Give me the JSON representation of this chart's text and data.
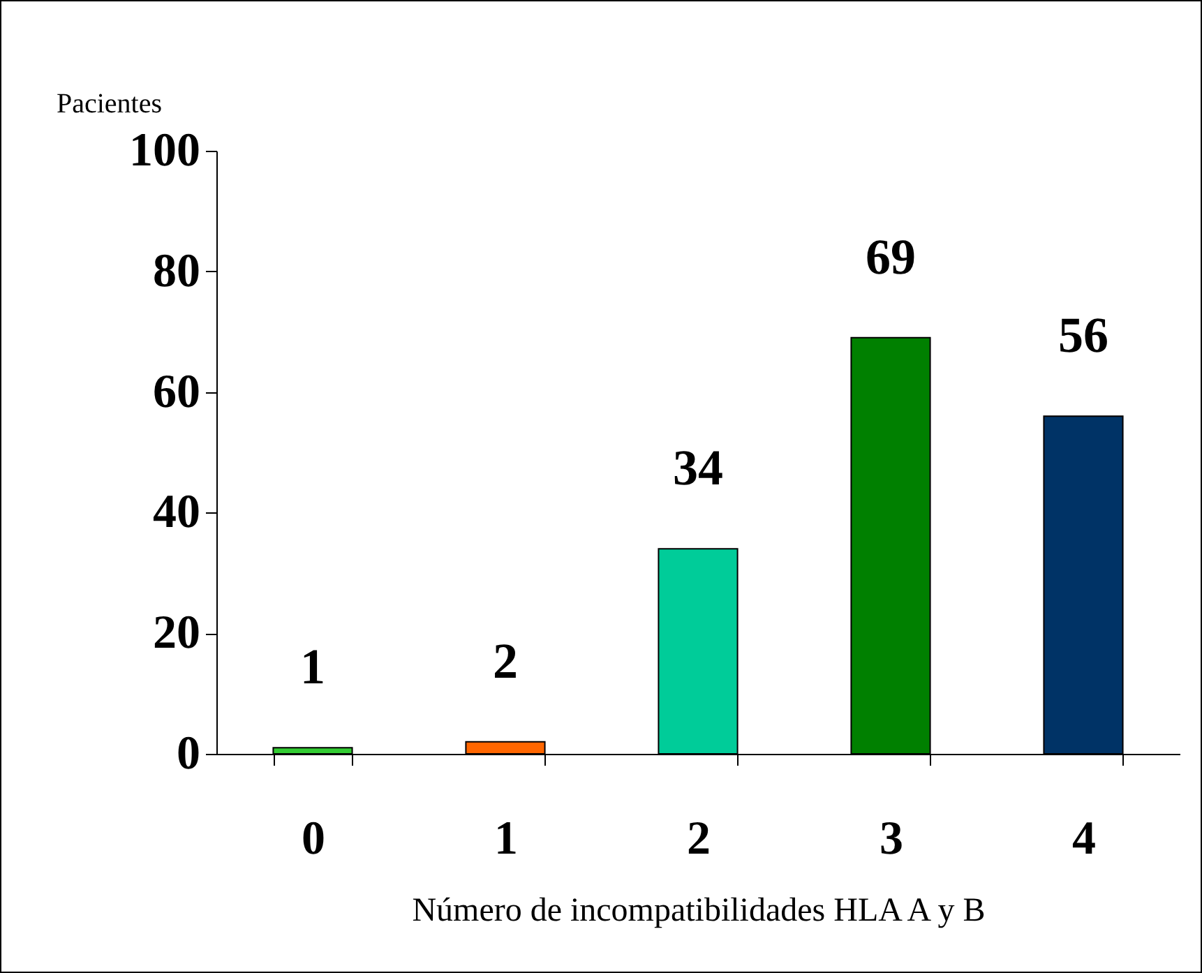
{
  "chart_data": {
    "type": "bar",
    "xlabel": "Número de incompatibilidades HLA A y B",
    "ylabel": "Pacientes",
    "categories": [
      "0",
      "1",
      "2",
      "3",
      "4"
    ],
    "values": [
      1,
      2,
      34,
      69,
      56
    ],
    "colors": [
      "#33cc33",
      "#ff6600",
      "#00cc99",
      "#008000",
      "#003366"
    ],
    "ylim": [
      0,
      100
    ],
    "yticks": [
      0,
      20,
      40,
      60,
      80,
      100
    ],
    "grid": false,
    "legend": false,
    "data_labels": true
  }
}
